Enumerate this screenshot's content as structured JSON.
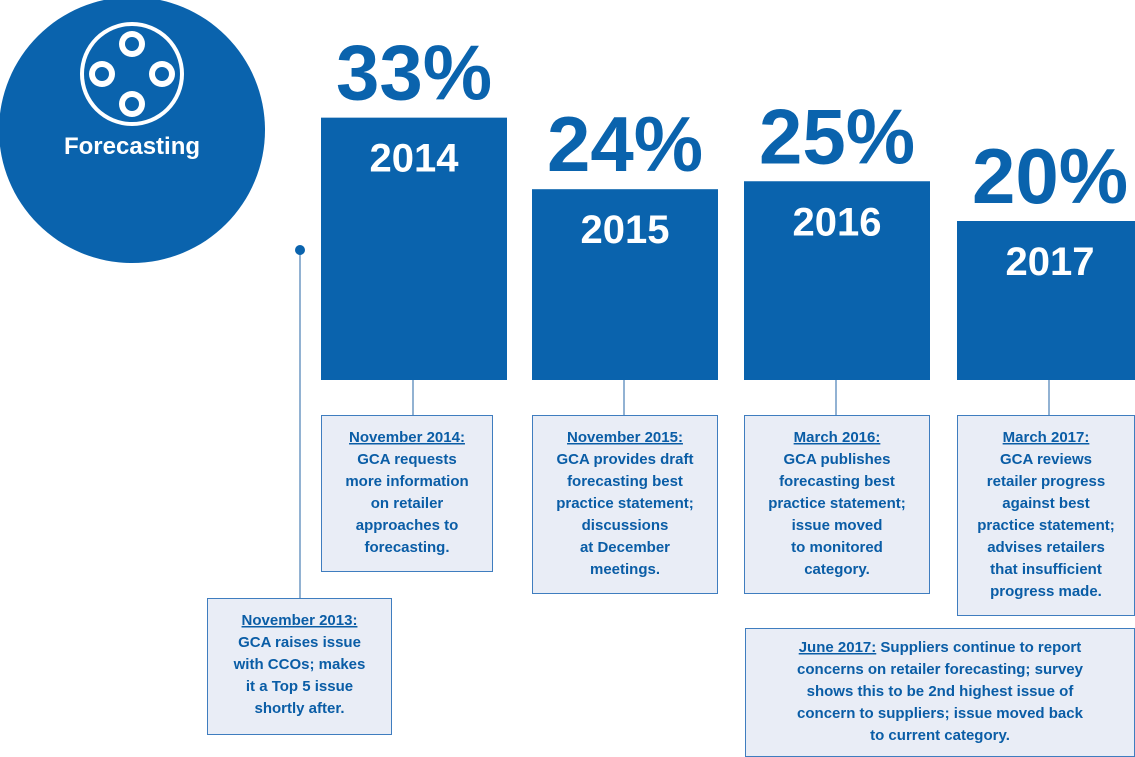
{
  "chart_data": {
    "type": "bar",
    "title": "Forecasting",
    "categories": [
      "2014",
      "2015",
      "2016",
      "2017"
    ],
    "values": [
      33,
      24,
      25,
      20
    ],
    "value_labels": [
      "33%",
      "24%",
      "25%",
      "20%"
    ],
    "color": "#0a63ad"
  },
  "notes": [
    {
      "heading": "November 2014:",
      "lines": [
        "GCA requests",
        "more information",
        "on retailer",
        "approaches to",
        "forecasting."
      ]
    },
    {
      "heading": "November 2015:",
      "lines": [
        "GCA provides draft",
        "forecasting best",
        "practice statement;",
        "discussions",
        "at December",
        "meetings."
      ]
    },
    {
      "heading": "March 2016:",
      "lines": [
        "GCA publishes",
        "forecasting best",
        "practice statement;",
        "issue moved",
        "to monitored",
        "category."
      ]
    },
    {
      "heading": "March 2017:",
      "lines": [
        "GCA reviews",
        "retailer progress",
        "against best",
        "practice statement;",
        "advises retailers",
        "that insufficient",
        "progress made."
      ]
    },
    {
      "heading": "November 2013:",
      "lines": [
        "GCA raises issue",
        "with CCOs; makes",
        "it a Top 5 issue",
        "shortly after."
      ]
    },
    {
      "heading": "June 2017:",
      "lines": [
        "Suppliers continue to report",
        "concerns on retailer forecasting; survey",
        "shows this to be 2nd highest issue of",
        "concern to suppliers; issue moved back",
        "to current category."
      ]
    }
  ]
}
